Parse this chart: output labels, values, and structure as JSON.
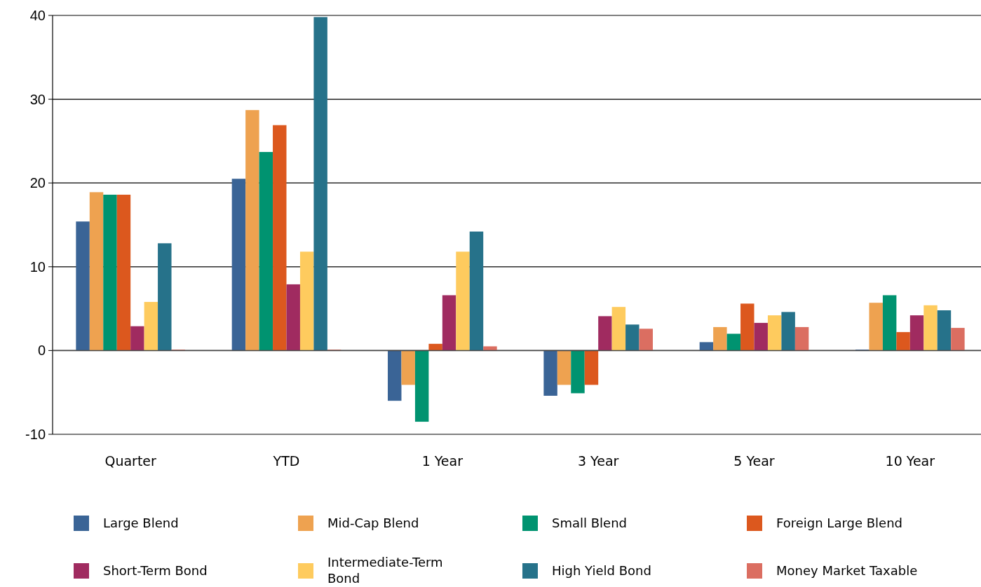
{
  "chart_data": {
    "type": "bar",
    "categories": [
      "Quarter",
      "YTD",
      "1 Year",
      "3 Year",
      "5 Year",
      "10 Year"
    ],
    "series": [
      {
        "name": "Large Blend",
        "color": "#3a6496",
        "values": [
          15.4,
          20.5,
          -6,
          -5.4,
          1,
          0.1
        ]
      },
      {
        "name": "Mid-Cap Blend",
        "color": "#eea250",
        "values": [
          18.9,
          28.7,
          -4.1,
          -4.1,
          2.8,
          5.7
        ]
      },
      {
        "name": "Small Blend",
        "color": "#009370",
        "values": [
          18.6,
          23.7,
          -8.5,
          -5.1,
          2,
          6.6
        ]
      },
      {
        "name": "Foreign Large Blend",
        "color": "#dc581e",
        "values": [
          18.6,
          26.9,
          0.8,
          -4.1,
          5.6,
          2.2
        ]
      },
      {
        "name": "Short-Term Bond",
        "color": "#a02b60",
        "values": [
          2.9,
          7.9,
          6.6,
          4.1,
          3.3,
          4.2
        ]
      },
      {
        "name": "Intermediate-Term Bond",
        "color": "#fecb5e",
        "values": [
          5.8,
          11.8,
          11.8,
          5.2,
          4.2,
          5.4
        ]
      },
      {
        "name": "High Yield Bond",
        "color": "#26728a",
        "values": [
          12.8,
          39.8,
          14.2,
          3.1,
          4.6,
          4.8
        ]
      },
      {
        "name": "Money Market Taxable",
        "color": "#db6e61",
        "values": [
          0.1,
          0.1,
          0.5,
          2.6,
          2.8,
          2.7
        ]
      }
    ],
    "ylim": [
      -10,
      40
    ],
    "yticks": [
      -10,
      0,
      10,
      20,
      30,
      40
    ],
    "grid": "y",
    "legend": "bottom"
  }
}
